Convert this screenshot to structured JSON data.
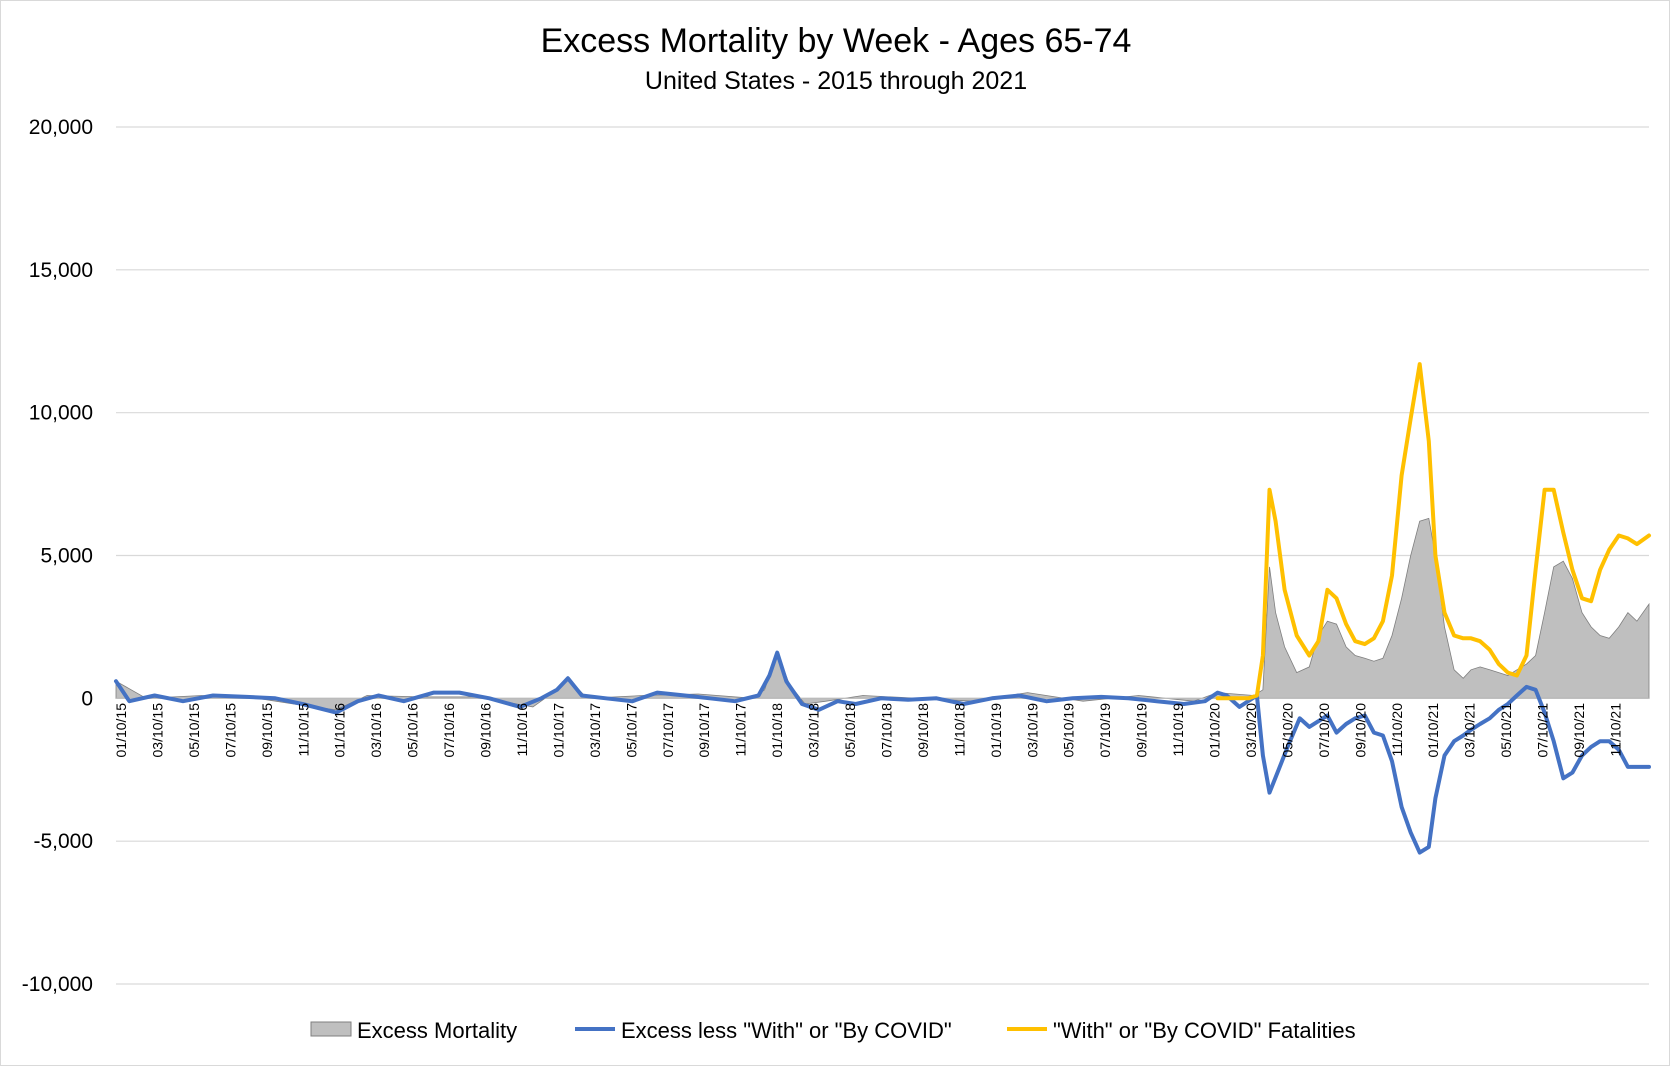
{
  "chart_data": {
    "type": "line",
    "title": "Excess Mortality by Week - Ages 65-74",
    "subtitle": "United States - 2015 through 2021",
    "xlabel": "",
    "ylabel": "",
    "ylim": [
      -10000,
      20000
    ],
    "yticks": [
      -10000,
      -5000,
      0,
      5000,
      10000,
      15000,
      20000
    ],
    "ytick_labels": [
      "-10,000",
      "-5,000",
      "0",
      "5,000",
      "10,000",
      "15,000",
      "20,000"
    ],
    "xlim": [
      "2015-01-10",
      "2021-12-25"
    ],
    "x_tick_labels": [
      "01/10/15",
      "03/10/15",
      "05/10/15",
      "07/10/15",
      "09/10/15",
      "11/10/15",
      "01/10/16",
      "03/10/16",
      "05/10/16",
      "07/10/16",
      "09/10/16",
      "11/10/16",
      "01/10/17",
      "03/10/17",
      "05/10/17",
      "07/10/17",
      "09/10/17",
      "11/10/17",
      "01/10/18",
      "03/10/18",
      "05/10/18",
      "07/10/18",
      "09/10/18",
      "11/10/18",
      "01/10/19",
      "03/10/19",
      "05/10/19",
      "07/10/19",
      "09/10/19",
      "11/10/19",
      "01/10/20",
      "03/10/20",
      "05/10/20",
      "07/10/20",
      "09/10/20",
      "11/10/20",
      "01/10/21",
      "03/10/21",
      "05/10/21",
      "07/10/21",
      "09/10/21",
      "11/10/21"
    ],
    "grid": true,
    "legend_position": "bottom",
    "series": [
      {
        "name": "Excess Mortality",
        "type": "area",
        "color": "#bfbfbf",
        "x": [
          "2015-01-10",
          "2015-03-01",
          "2015-06-01",
          "2015-09-01",
          "2015-12-01",
          "2016-01-10",
          "2016-03-01",
          "2016-06-01",
          "2016-09-01",
          "2016-12-01",
          "2017-01-10",
          "2017-01-28",
          "2017-03-01",
          "2017-06-01",
          "2017-09-01",
          "2017-12-01",
          "2017-12-20",
          "2018-01-10",
          "2018-01-30",
          "2018-02-25",
          "2018-04-01",
          "2018-06-01",
          "2018-09-01",
          "2018-12-01",
          "2019-03-01",
          "2019-06-01",
          "2019-09-01",
          "2019-12-01",
          "2020-01-10",
          "2020-03-10",
          "2020-03-25",
          "2020-04-05",
          "2020-04-15",
          "2020-04-30",
          "2020-05-20",
          "2020-06-10",
          "2020-06-25",
          "2020-07-10",
          "2020-07-25",
          "2020-08-10",
          "2020-08-25",
          "2020-09-10",
          "2020-09-25",
          "2020-10-10",
          "2020-10-25",
          "2020-11-10",
          "2020-11-25",
          "2020-12-10",
          "2020-12-25",
          "2021-01-05",
          "2021-01-20",
          "2021-02-05",
          "2021-02-20",
          "2021-03-05",
          "2021-03-20",
          "2021-04-05",
          "2021-04-20",
          "2021-05-05",
          "2021-05-20",
          "2021-06-05",
          "2021-06-20",
          "2021-07-05",
          "2021-07-20",
          "2021-08-05",
          "2021-08-20",
          "2021-09-05",
          "2021-09-20",
          "2021-10-05",
          "2021-10-20",
          "2021-11-05",
          "2021-11-20",
          "2021-12-05",
          "2021-12-25"
        ],
        "y": [
          600,
          0,
          100,
          0,
          -300,
          -400,
          100,
          50,
          50,
          -300,
          300,
          700,
          0,
          100,
          150,
          0,
          300,
          1600,
          500,
          -200,
          -100,
          100,
          0,
          -100,
          200,
          -100,
          100,
          -100,
          200,
          100,
          300,
          4600,
          3000,
          1800,
          900,
          1100,
          2200,
          2700,
          2600,
          1800,
          1500,
          1400,
          1300,
          1400,
          2200,
          3500,
          5000,
          6200,
          6300,
          5000,
          2500,
          1000,
          700,
          1000,
          1100,
          1000,
          900,
          800,
          1000,
          1200,
          1500,
          3000,
          4600,
          4800,
          4200,
          3000,
          2500,
          2200,
          2100,
          2500,
          3000,
          2700,
          3300
        ]
      },
      {
        "name": "Excess less \"With\" or \"By COVID\"",
        "type": "line",
        "color": "#4472c4",
        "x": [
          "2015-01-10",
          "2015-02-01",
          "2015-03-15",
          "2015-05-01",
          "2015-06-20",
          "2015-08-15",
          "2015-10-01",
          "2015-11-15",
          "2016-01-10",
          "2016-02-15",
          "2016-03-20",
          "2016-05-01",
          "2016-06-20",
          "2016-08-01",
          "2016-09-20",
          "2016-11-10",
          "2016-12-15",
          "2017-01-10",
          "2017-01-28",
          "2017-02-20",
          "2017-04-01",
          "2017-05-15",
          "2017-06-25",
          "2017-08-10",
          "2017-09-20",
          "2017-11-01",
          "2017-12-10",
          "2017-12-28",
          "2018-01-10",
          "2018-01-25",
          "2018-02-20",
          "2018-03-20",
          "2018-04-20",
          "2018-05-20",
          "2018-07-01",
          "2018-08-15",
          "2018-10-01",
          "2018-11-15",
          "2019-01-01",
          "2019-02-15",
          "2019-04-01",
          "2019-05-15",
          "2019-07-01",
          "2019-08-15",
          "2019-10-01",
          "2019-11-15",
          "2019-12-20",
          "2020-01-10",
          "2020-01-25",
          "2020-02-15",
          "2020-03-15",
          "2020-03-25",
          "2020-04-05",
          "2020-04-20",
          "2020-05-05",
          "2020-05-25",
          "2020-06-10",
          "2020-06-25",
          "2020-07-10",
          "2020-07-25",
          "2020-08-10",
          "2020-08-25",
          "2020-09-10",
          "2020-09-25",
          "2020-10-10",
          "2020-10-25",
          "2020-11-10",
          "2020-11-25",
          "2020-12-10",
          "2020-12-25",
          "2021-01-05",
          "2021-01-20",
          "2021-02-05",
          "2021-02-20",
          "2021-03-05",
          "2021-03-20",
          "2021-04-05",
          "2021-04-20",
          "2021-05-05",
          "2021-05-20",
          "2021-06-05",
          "2021-06-20",
          "2021-07-05",
          "2021-07-20",
          "2021-08-05",
          "2021-08-20",
          "2021-09-05",
          "2021-09-20",
          "2021-10-05",
          "2021-10-20",
          "2021-11-05",
          "2021-11-20",
          "2021-12-05",
          "2021-12-25"
        ],
        "y": [
          600,
          -100,
          100,
          -100,
          100,
          50,
          0,
          -200,
          -500,
          -100,
          100,
          -100,
          200,
          200,
          0,
          -300,
          0,
          300,
          700,
          100,
          0,
          -100,
          200,
          100,
          0,
          -100,
          100,
          800,
          1600,
          600,
          -200,
          -400,
          -100,
          -200,
          0,
          -50,
          0,
          -200,
          0,
          100,
          -100,
          0,
          50,
          0,
          -100,
          -200,
          -100,
          200,
          100,
          -300,
          100,
          -2000,
          -3300,
          -2500,
          -1700,
          -700,
          -1000,
          -800,
          -600,
          -1200,
          -900,
          -700,
          -600,
          -1200,
          -1300,
          -2200,
          -3800,
          -4700,
          -5400,
          -5200,
          -3500,
          -2000,
          -1500,
          -1300,
          -1100,
          -900,
          -700,
          -400,
          -200,
          100,
          400,
          300,
          -500,
          -1500,
          -2800,
          -2600,
          -2000,
          -1700,
          -1500,
          -1500,
          -1800,
          -2400,
          -2400,
          -2400
        ]
      },
      {
        "name": "\"With\" or \"By COVID\" Fatalities",
        "type": "line",
        "color": "#ffc000",
        "x": [
          "2020-01-10",
          "2020-02-01",
          "2020-03-01",
          "2020-03-15",
          "2020-03-25",
          "2020-04-05",
          "2020-04-15",
          "2020-04-30",
          "2020-05-20",
          "2020-06-10",
          "2020-06-25",
          "2020-07-10",
          "2020-07-25",
          "2020-08-10",
          "2020-08-25",
          "2020-09-10",
          "2020-09-25",
          "2020-10-10",
          "2020-10-25",
          "2020-11-10",
          "2020-11-25",
          "2020-12-10",
          "2020-12-25",
          "2021-01-05",
          "2021-01-20",
          "2021-02-05",
          "2021-02-20",
          "2021-03-05",
          "2021-03-20",
          "2021-04-05",
          "2021-04-20",
          "2021-05-05",
          "2021-05-20",
          "2021-06-05",
          "2021-06-20",
          "2021-07-05",
          "2021-07-20",
          "2021-08-05",
          "2021-08-20",
          "2021-09-05",
          "2021-09-20",
          "2021-10-05",
          "2021-10-20",
          "2021-11-05",
          "2021-11-20",
          "2021-12-05",
          "2021-12-25"
        ],
        "y": [
          0,
          0,
          0,
          100,
          1500,
          7300,
          6200,
          3800,
          2200,
          1500,
          2000,
          3800,
          3500,
          2600,
          2000,
          1900,
          2100,
          2700,
          4300,
          7800,
          9800,
          11700,
          9000,
          5000,
          3000,
          2200,
          2100,
          2100,
          2000,
          1700,
          1200,
          900,
          800,
          1500,
          4500,
          7300,
          7300,
          5800,
          4500,
          3500,
          3400,
          4500,
          5200,
          5700,
          5600,
          5400,
          5700
        ]
      }
    ]
  }
}
